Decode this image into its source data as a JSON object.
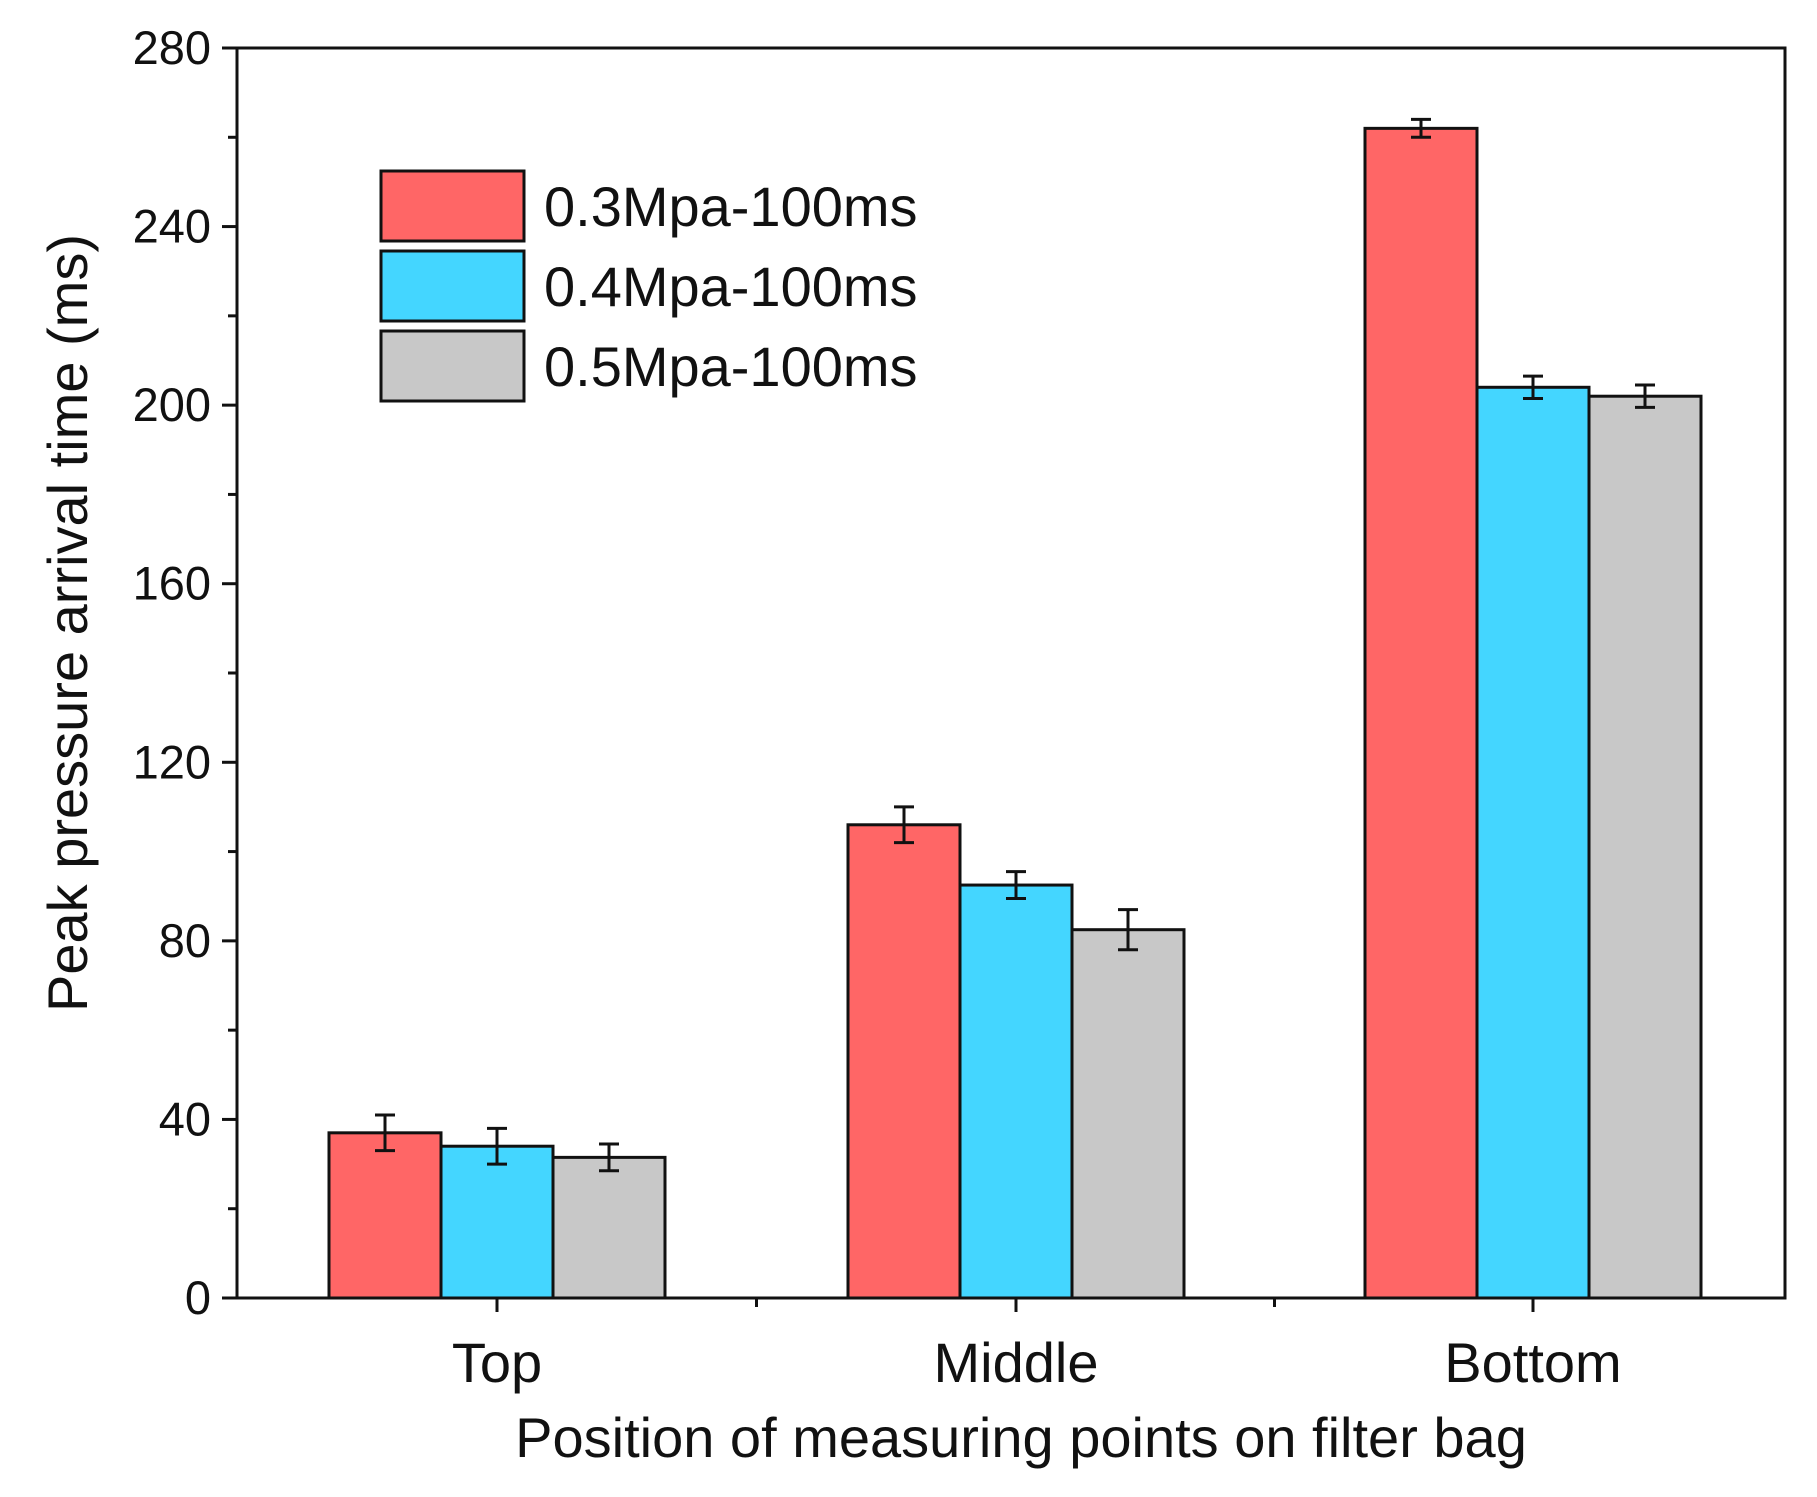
{
  "chart_data": {
    "type": "bar",
    "title": "",
    "xlabel": "Position of measuring points on filter bag",
    "ylabel": "Peak pressure arrival time (ms)",
    "ylim": [
      0,
      280
    ],
    "yticks": [
      "0",
      "40",
      "80",
      "120",
      "160",
      "200",
      "240",
      "280"
    ],
    "categories": [
      "Top",
      "Middle",
      "Bottom"
    ],
    "series": [
      {
        "name": "0.3Mpa-100ms",
        "color": "#ff6666",
        "values": [
          37,
          106,
          262
        ],
        "errors": [
          4,
          4,
          2
        ]
      },
      {
        "name": "0.4Mpa-100ms",
        "color": "#44d6ff",
        "values": [
          34,
          92.5,
          204
        ],
        "errors": [
          4,
          3,
          2.5
        ]
      },
      {
        "name": "0.5Mpa-100ms",
        "color": "#c8c8c8",
        "values": [
          31.5,
          82.5,
          202
        ],
        "errors": [
          3,
          4.5,
          2.5
        ]
      }
    ],
    "legend_position": "top-left",
    "grid": false
  }
}
